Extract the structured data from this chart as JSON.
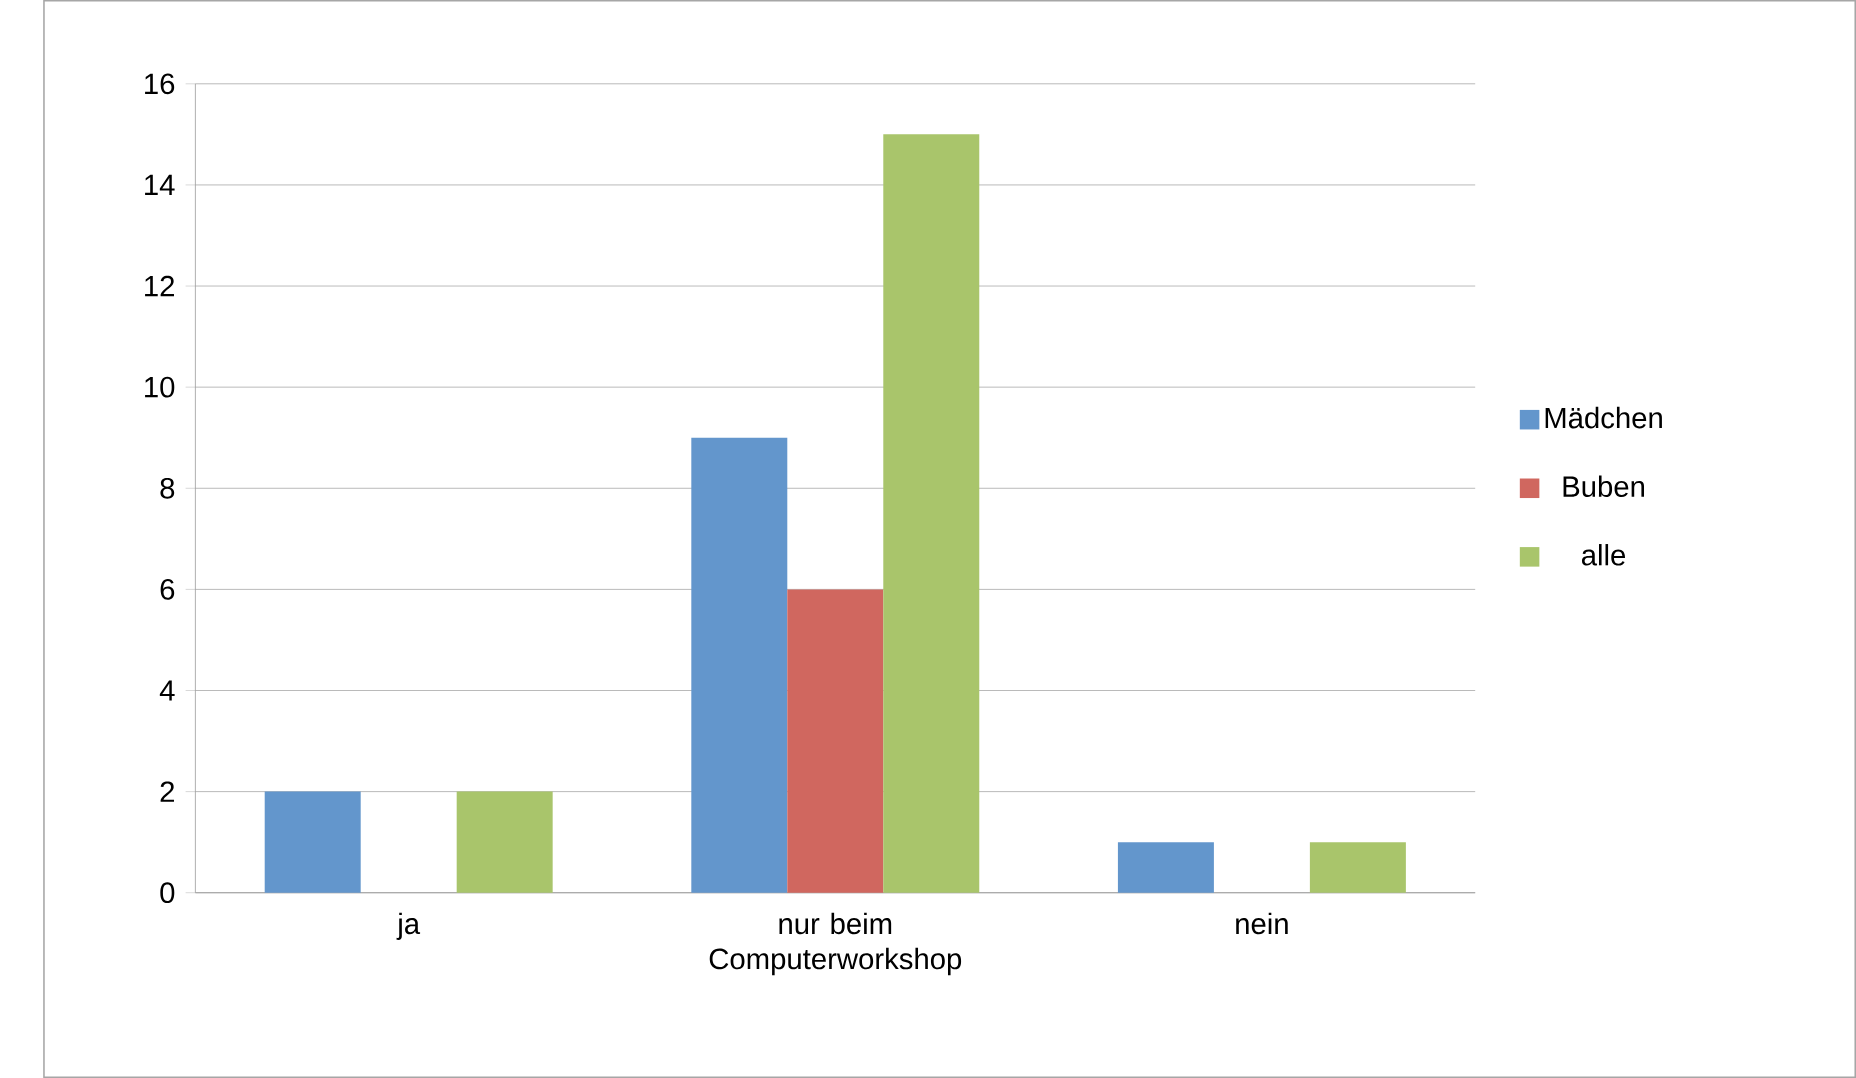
{
  "chart_data": {
    "type": "bar",
    "categories": [
      "ja",
      "nur beim Computerworkshop",
      "nein"
    ],
    "series": [
      {
        "name": "Mädchen",
        "color": "#6396cc",
        "values": [
          2,
          9,
          1
        ]
      },
      {
        "name": "Buben",
        "color": "#d0675f",
        "values": [
          0,
          6,
          0
        ]
      },
      {
        "name": "alle",
        "color": "#a9c56b",
        "values": [
          2,
          15,
          1
        ]
      }
    ],
    "ylim": [
      0,
      16
    ],
    "yticks": [
      0,
      2,
      4,
      6,
      8,
      10,
      12,
      14,
      16
    ],
    "grid": "y",
    "legend": "right"
  }
}
